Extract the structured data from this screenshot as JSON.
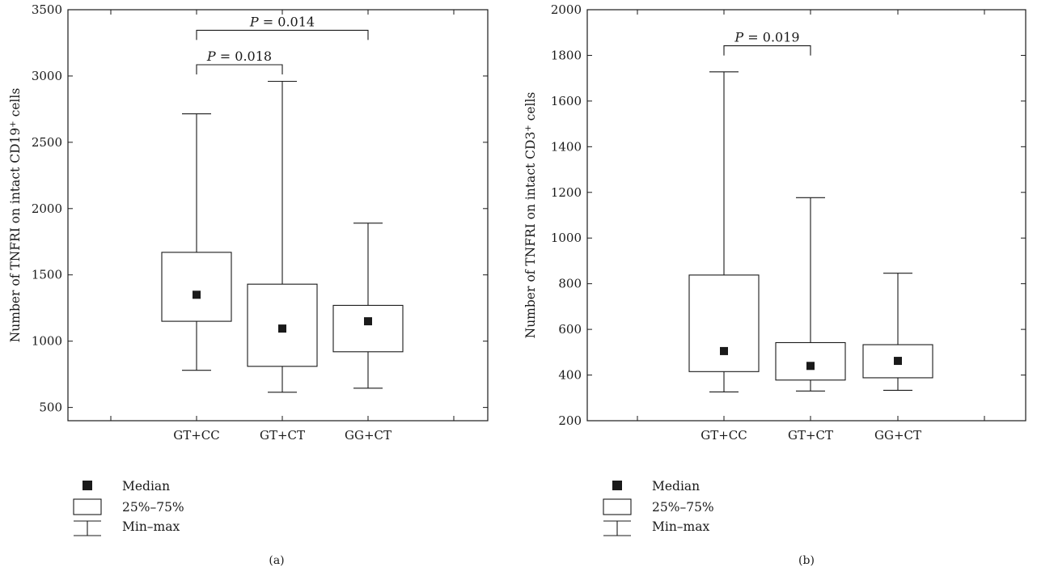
{
  "chart_data": [
    {
      "panel_label": "(a)",
      "type": "box",
      "ylabel_main": "Number of TNFRI on intact CD19",
      "ylabel_sup": "+",
      "ylabel_tail": " cells",
      "ylim": [
        400,
        3500
      ],
      "yticks": [
        500,
        1000,
        1500,
        2000,
        2500,
        3000,
        3500
      ],
      "categories": [
        "GT+CC",
        "GT+CT",
        "GG+CT"
      ],
      "median": [
        1350,
        1095,
        1150
      ],
      "q1": [
        1150,
        810,
        920
      ],
      "q3": [
        1670,
        1430,
        1270
      ],
      "min": [
        780,
        615,
        645
      ],
      "max": [
        2715,
        2960,
        1890
      ],
      "comparisons": [
        {
          "from": 0,
          "to": 2,
          "label_p": "P",
          "label_rest": " = 0.014",
          "y": 3345
        },
        {
          "from": 0,
          "to": 1,
          "label_p": "P",
          "label_rest": " = 0.018",
          "y": 3085
        }
      ]
    },
    {
      "panel_label": "(b)",
      "type": "box",
      "ylabel_main": "Number of TNFRI on intact CD3",
      "ylabel_sup": "+",
      "ylabel_tail": " cells",
      "ylim": [
        200,
        2000
      ],
      "yticks": [
        200,
        400,
        600,
        800,
        1000,
        1200,
        1400,
        1600,
        1800,
        2000
      ],
      "categories": [
        "GT+CC",
        "GT+CT",
        "GG+CT"
      ],
      "median": [
        505,
        440,
        462
      ],
      "q1": [
        415,
        378,
        388
      ],
      "q3": [
        838,
        542,
        533
      ],
      "min": [
        326,
        330,
        333
      ],
      "max": [
        1728,
        1177,
        846
      ],
      "comparisons": [
        {
          "from": 0,
          "to": 1,
          "label_p": "P",
          "label_rest": " = 0.019",
          "y": 1842
        }
      ]
    }
  ],
  "legend": {
    "median": "Median",
    "box": "25%–75%",
    "whisker": "Min–max"
  }
}
